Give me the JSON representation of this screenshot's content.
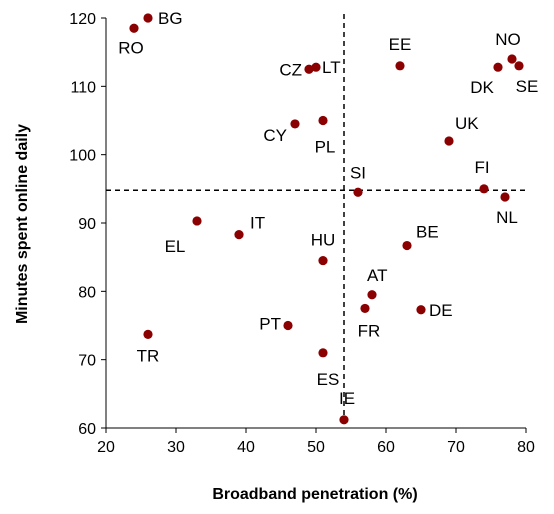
{
  "chart_data": {
    "type": "scatter",
    "title": "",
    "xlabel": "Broadband penetration (%)",
    "ylabel": "Minutes spent online daily",
    "xlim": [
      20,
      80
    ],
    "ylim": [
      60,
      120
    ],
    "xticks": [
      "20",
      "30",
      "40",
      "50",
      "60",
      "70",
      "80"
    ],
    "yticks": [
      "60",
      "70",
      "80",
      "90",
      "100",
      "110",
      "120"
    ],
    "grid": false,
    "marker_color": "#8b0000",
    "reference_lines": {
      "x": 54,
      "y": 94.8
    },
    "points": [
      {
        "label": "BG",
        "x": 26,
        "y": 120
      },
      {
        "label": "RO",
        "x": 24,
        "y": 118.5
      },
      {
        "label": "CZ",
        "x": 49,
        "y": 112.5
      },
      {
        "label": "LT",
        "x": 50,
        "y": 112.8
      },
      {
        "label": "EE",
        "x": 62,
        "y": 113
      },
      {
        "label": "NO",
        "x": 78,
        "y": 114
      },
      {
        "label": "DK",
        "x": 76,
        "y": 112.8
      },
      {
        "label": "SE",
        "x": 79,
        "y": 113
      },
      {
        "label": "CY",
        "x": 47,
        "y": 104.5
      },
      {
        "label": "PL",
        "x": 51,
        "y": 105
      },
      {
        "label": "UK",
        "x": 69,
        "y": 102
      },
      {
        "label": "SI",
        "x": 56,
        "y": 94.5
      },
      {
        "label": "FI",
        "x": 74,
        "y": 95
      },
      {
        "label": "NL",
        "x": 77,
        "y": 93.8
      },
      {
        "label": "EL",
        "x": 33,
        "y": 90.3
      },
      {
        "label": "IT",
        "x": 39,
        "y": 88.3
      },
      {
        "label": "HU",
        "x": 51,
        "y": 84.5
      },
      {
        "label": "BE",
        "x": 63,
        "y": 86.7
      },
      {
        "label": "AT",
        "x": 58,
        "y": 79.5
      },
      {
        "label": "FR",
        "x": 57,
        "y": 77.5
      },
      {
        "label": "DE",
        "x": 65,
        "y": 77.3
      },
      {
        "label": "PT",
        "x": 46,
        "y": 75
      },
      {
        "label": "TR",
        "x": 26,
        "y": 73.7
      },
      {
        "label": "ES",
        "x": 51,
        "y": 71
      },
      {
        "label": "IE",
        "x": 54,
        "y": 61.2
      }
    ]
  }
}
